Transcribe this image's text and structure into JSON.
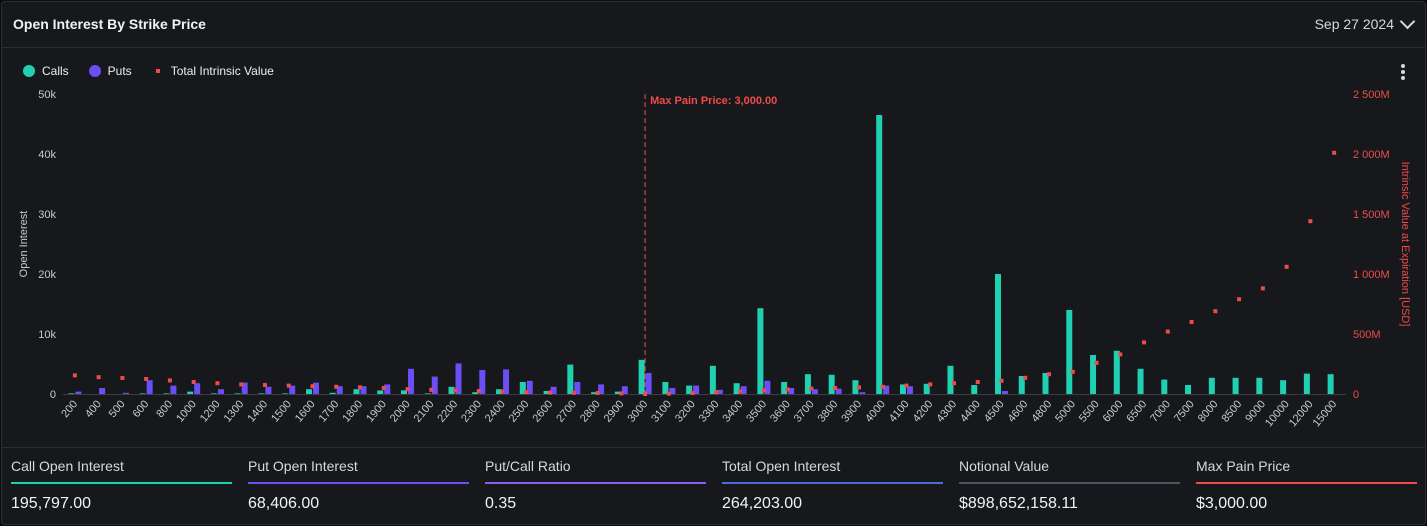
{
  "header": {
    "title": "Open Interest By Strike Price",
    "date": "Sep 27 2024"
  },
  "legend": [
    {
      "label": "Calls",
      "color": "#1fd1b1",
      "shape": "circle"
    },
    {
      "label": "Puts",
      "color": "#6b4ef5",
      "shape": "circle"
    },
    {
      "label": "Total Intrinsic Value",
      "color": "#ef4b4b",
      "shape": "square"
    }
  ],
  "chart_data": {
    "type": "bar",
    "categories": [
      "200",
      "400",
      "500",
      "600",
      "800",
      "1000",
      "1200",
      "1300",
      "1400",
      "1500",
      "1600",
      "1700",
      "1800",
      "1900",
      "2000",
      "2100",
      "2200",
      "2300",
      "2400",
      "2500",
      "2600",
      "2700",
      "2800",
      "2900",
      "3000",
      "3100",
      "3200",
      "3300",
      "3400",
      "3500",
      "3600",
      "3700",
      "3800",
      "3900",
      "4000",
      "4100",
      "4200",
      "4300",
      "4400",
      "4500",
      "4600",
      "4800",
      "5000",
      "5500",
      "6000",
      "6500",
      "7000",
      "7500",
      "8000",
      "8500",
      "9000",
      "10000",
      "12000",
      "15000"
    ],
    "series": [
      {
        "name": "Calls",
        "type": "bar",
        "axis": "left",
        "color": "#1fd1b1",
        "values": [
          100,
          0,
          0,
          100,
          100,
          400,
          100,
          100,
          100,
          100,
          800,
          200,
          800,
          600,
          600,
          100,
          1200,
          300,
          800,
          2000,
          500,
          4900,
          300,
          400,
          5700,
          2000,
          1400,
          4700,
          1800,
          14300,
          2000,
          3300,
          3200,
          2300,
          46500,
          1600,
          1700,
          4700,
          1500,
          20000,
          3000,
          3500,
          14000,
          6500,
          7200,
          4200,
          2400,
          1500,
          2700,
          2700,
          2700,
          2300,
          3400,
          3300
        ]
      },
      {
        "name": "Puts",
        "type": "bar",
        "axis": "left",
        "color": "#6b4ef5",
        "values": [
          400,
          1000,
          200,
          2300,
          1400,
          1800,
          800,
          1900,
          1200,
          1400,
          1900,
          1300,
          1300,
          1600,
          4200,
          2900,
          5100,
          4000,
          4100,
          2200,
          1200,
          2000,
          1600,
          1300,
          3500,
          1000,
          1400,
          700,
          1300,
          2200,
          1000,
          800,
          900,
          300,
          1400,
          1300,
          0,
          0,
          0,
          500,
          0,
          0,
          0,
          0,
          0,
          0,
          0,
          0,
          0,
          0,
          0,
          0,
          0,
          0
        ]
      },
      {
        "name": "Total Intrinsic Value",
        "type": "scatter",
        "axis": "right",
        "color": "#ef4b4b",
        "values": [
          155000000,
          140000000,
          133000000,
          125000000,
          113000000,
          100000000,
          90000000,
          80000000,
          75000000,
          70000000,
          65000000,
          60000000,
          55000000,
          50000000,
          40000000,
          35000000,
          30000000,
          25000000,
          20000000,
          15000000,
          12000000,
          10000000,
          8000000,
          5000000,
          0,
          3000000,
          8000000,
          15000000,
          22000000,
          30000000,
          38000000,
          45000000,
          50000000,
          55000000,
          60000000,
          70000000,
          80000000,
          90000000,
          100000000,
          110000000,
          135000000,
          165000000,
          185000000,
          260000000,
          330000000,
          430000000,
          520000000,
          600000000,
          690000000,
          790000000,
          880000000,
          1060000000,
          1440000000,
          2010000000
        ]
      }
    ],
    "ylabel": "Open Interest",
    "y2label": "Intrinsic Value at Expiration [USD]",
    "ylim": [
      0,
      50000
    ],
    "y2lim": [
      0,
      2500000000
    ],
    "y_ticks": [
      "0",
      "10k",
      "20k",
      "30k",
      "40k",
      "50k"
    ],
    "y2_ticks": [
      "0",
      "500M",
      "1 000M",
      "1 500M",
      "2 000M",
      "2 500M"
    ],
    "marker": {
      "category": "3000",
      "label": "Max Pain Price: 3,000.00",
      "color": "#ef4b4b"
    },
    "grid": false
  },
  "stats": [
    {
      "label": "Call Open Interest",
      "value": "195,797.00",
      "color": "#1fd1b1"
    },
    {
      "label": "Put Open Interest",
      "value": "68,406.00",
      "color": "#6b4ef5"
    },
    {
      "label": "Put/Call Ratio",
      "value": "0.35",
      "color": "#8a5cf0"
    },
    {
      "label": "Total Open Interest",
      "value": "264,203.00",
      "color": "#4a6bd8"
    },
    {
      "label": "Notional Value",
      "value": "$898,652,158.11",
      "color": "#4c5663"
    },
    {
      "label": "Max Pain Price",
      "value": "$3,000.00",
      "color": "#ef4b4b"
    }
  ]
}
